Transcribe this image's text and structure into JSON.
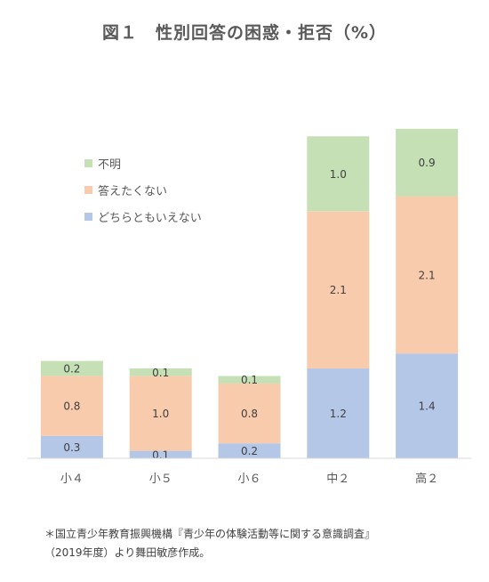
{
  "title": "図１　性別回答の困惑・拒否（%）",
  "colors": {
    "どちらともいえない": "#b4c7e7",
    "答えたくない": "#f8cbad",
    "不明": "#c5e0b4",
    "axis": "#d9d9d9",
    "label": "#404040"
  },
  "legend": [
    {
      "label": "不明",
      "color": "#c5e0b4"
    },
    {
      "label": "答えたくない",
      "color": "#f8cbad"
    },
    {
      "label": "どちらともいえない",
      "color": "#b4c7e7"
    }
  ],
  "chart_data": {
    "type": "bar",
    "stacked": true,
    "title": "図１　性別回答の困惑・拒否（%）",
    "categories": [
      "小４",
      "小５",
      "小６",
      "中２",
      "高２"
    ],
    "series": [
      {
        "name": "どちらともいえない",
        "values": [
          0.3,
          0.1,
          0.2,
          1.2,
          1.4
        ]
      },
      {
        "name": "答えたくない",
        "values": [
          0.8,
          1.0,
          0.8,
          2.1,
          2.1
        ]
      },
      {
        "name": "不明",
        "values": [
          0.2,
          0.1,
          0.1,
          1.0,
          0.9
        ]
      }
    ],
    "value_labels": [
      [
        "0.3",
        "0.1",
        "0.2",
        "1.2",
        "1.4"
      ],
      [
        "0.8",
        "1.0",
        "0.8",
        "2.1",
        "2.1"
      ],
      [
        "0.2",
        "0.1",
        "0.1",
        "1.0",
        "0.9"
      ]
    ],
    "ylim": [
      0,
      4.6
    ],
    "grid": false,
    "legend_position": "upper-left inside"
  },
  "source": {
    "line1": "＊国立青少年教育振興機構『青少年の体験活動等に関する意識調査』",
    "line2": "（2019年度）より舞田敏彦作成。"
  }
}
